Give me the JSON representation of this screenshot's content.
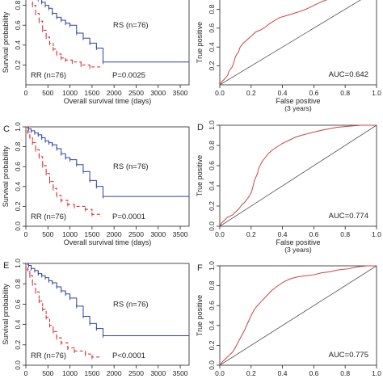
{
  "chart_data": [
    {
      "id": "km-top",
      "type": "line",
      "panel_letter": "",
      "xlabel": "Overall survival time (days)",
      "ylabel": "Survival probability",
      "xlim": [
        0,
        3700
      ],
      "ylim": [
        0,
        1
      ],
      "x_ticks": [
        0,
        500,
        1000,
        1500,
        2000,
        2500,
        3000,
        3500
      ],
      "y_ticks": [
        0.2,
        0.4,
        0.6,
        0.8
      ],
      "series": [
        {
          "name": "RS (n=76)",
          "color": "#3040a0",
          "dash": "",
          "points": [
            [
              0,
              1.0
            ],
            [
              60,
              0.97
            ],
            [
              120,
              0.93
            ],
            [
              200,
              0.89
            ],
            [
              280,
              0.86
            ],
            [
              360,
              0.83
            ],
            [
              440,
              0.8
            ],
            [
              520,
              0.77
            ],
            [
              600,
              0.72
            ],
            [
              700,
              0.68
            ],
            [
              800,
              0.65
            ],
            [
              900,
              0.62
            ],
            [
              1000,
              0.6
            ],
            [
              1150,
              0.52
            ],
            [
              1300,
              0.47
            ],
            [
              1450,
              0.42
            ],
            [
              1600,
              0.37
            ],
            [
              1750,
              0.23
            ],
            [
              3700,
              0.23
            ]
          ]
        },
        {
          "name": "RR (n=76)",
          "color": "#d02028",
          "dash": "4,3",
          "points": [
            [
              0,
              1.0
            ],
            [
              40,
              0.94
            ],
            [
              90,
              0.88
            ],
            [
              150,
              0.8
            ],
            [
              220,
              0.72
            ],
            [
              300,
              0.64
            ],
            [
              380,
              0.55
            ],
            [
              460,
              0.48
            ],
            [
              540,
              0.42
            ],
            [
              620,
              0.36
            ],
            [
              700,
              0.31
            ],
            [
              800,
              0.27
            ],
            [
              900,
              0.25
            ],
            [
              1050,
              0.23
            ],
            [
              1250,
              0.2
            ],
            [
              1450,
              0.18
            ],
            [
              1700,
              0.17
            ]
          ]
        }
      ],
      "labels": {
        "rs": "RS (n=76)",
        "rr": "RR (n=76)",
        "p": "P=0.0025"
      }
    },
    {
      "id": "roc-top",
      "type": "line",
      "panel_letter": "",
      "xlabel": "False positive",
      "xsublabel": "(3 years)",
      "ylabel": "True positive",
      "xlim": [
        0,
        1
      ],
      "ylim": [
        0,
        1
      ],
      "x_ticks": [
        0,
        0.2,
        0.4,
        0.6,
        0.8,
        1.0
      ],
      "y_ticks": [
        0.2,
        0.4,
        0.6,
        0.8
      ],
      "auc": "AUC=0.642",
      "series": [
        {
          "name": "ROC",
          "color": "#d04048",
          "points": [
            [
              0,
              0
            ],
            [
              0.01,
              0.03
            ],
            [
              0.03,
              0.06
            ],
            [
              0.05,
              0.1
            ],
            [
              0.06,
              0.15
            ],
            [
              0.08,
              0.19
            ],
            [
              0.09,
              0.24
            ],
            [
              0.1,
              0.3
            ],
            [
              0.12,
              0.35
            ],
            [
              0.13,
              0.4
            ],
            [
              0.15,
              0.44
            ],
            [
              0.17,
              0.47
            ],
            [
              0.19,
              0.5
            ],
            [
              0.21,
              0.53
            ],
            [
              0.23,
              0.56
            ],
            [
              0.26,
              0.58
            ],
            [
              0.29,
              0.61
            ],
            [
              0.32,
              0.65
            ],
            [
              0.35,
              0.68
            ],
            [
              0.38,
              0.71
            ],
            [
              0.42,
              0.73
            ],
            [
              0.46,
              0.75
            ],
            [
              0.5,
              0.77
            ],
            [
              0.55,
              0.8
            ],
            [
              0.6,
              0.84
            ],
            [
              0.65,
              0.88
            ],
            [
              0.7,
              0.91
            ],
            [
              0.75,
              0.94
            ],
            [
              0.8,
              0.97
            ],
            [
              0.85,
              0.99
            ],
            [
              0.9,
              1.0
            ],
            [
              1.0,
              1.0
            ]
          ]
        }
      ]
    },
    {
      "id": "km-mid",
      "type": "line",
      "panel_letter": "C",
      "xlabel": "Overall survival time (days)",
      "ylabel": "Survival probability",
      "xlim": [
        0,
        3700
      ],
      "ylim": [
        0,
        1
      ],
      "x_ticks": [
        0,
        500,
        1000,
        1500,
        2000,
        2500,
        3000,
        3500
      ],
      "y_ticks": [
        0.0,
        0.2,
        0.4,
        0.6,
        0.8,
        1.0
      ],
      "series": [
        {
          "name": "RS (n=76)",
          "color": "#3040a0",
          "dash": "",
          "points": [
            [
              0,
              1.0
            ],
            [
              60,
              0.98
            ],
            [
              120,
              0.96
            ],
            [
              200,
              0.94
            ],
            [
              280,
              0.92
            ],
            [
              360,
              0.89
            ],
            [
              440,
              0.86
            ],
            [
              520,
              0.84
            ],
            [
              600,
              0.82
            ],
            [
              700,
              0.78
            ],
            [
              800,
              0.73
            ],
            [
              900,
              0.69
            ],
            [
              1000,
              0.67
            ],
            [
              1150,
              0.62
            ],
            [
              1300,
              0.55
            ],
            [
              1450,
              0.46
            ],
            [
              1600,
              0.4
            ],
            [
              1750,
              0.3
            ],
            [
              3700,
              0.3
            ]
          ]
        },
        {
          "name": "RR (n=76)",
          "color": "#d02028",
          "dash": "4,3",
          "points": [
            [
              0,
              1.0
            ],
            [
              40,
              0.95
            ],
            [
              90,
              0.9
            ],
            [
              150,
              0.84
            ],
            [
              220,
              0.77
            ],
            [
              300,
              0.7
            ],
            [
              380,
              0.61
            ],
            [
              460,
              0.53
            ],
            [
              540,
              0.45
            ],
            [
              620,
              0.38
            ],
            [
              700,
              0.31
            ],
            [
              800,
              0.26
            ],
            [
              950,
              0.22
            ],
            [
              1100,
              0.2
            ],
            [
              1350,
              0.17
            ],
            [
              1500,
              0.12
            ],
            [
              1700,
              0.1
            ]
          ]
        }
      ],
      "labels": {
        "rs": "RS (n=76)",
        "rr": "RR (n=76)",
        "p": "P=0.0001"
      }
    },
    {
      "id": "roc-mid",
      "type": "line",
      "panel_letter": "D",
      "xlabel": "False positive",
      "xsublabel": "(3 years)",
      "ylabel": "True positive",
      "xlim": [
        0,
        1
      ],
      "ylim": [
        0,
        1
      ],
      "x_ticks": [
        0,
        0.2,
        0.4,
        0.6,
        0.8,
        1.0
      ],
      "y_ticks": [
        0.0,
        0.2,
        0.4,
        0.6,
        0.8,
        1.0
      ],
      "auc": "AUC=0.774",
      "series": [
        {
          "name": "ROC",
          "color": "#d04048",
          "points": [
            [
              0,
              0
            ],
            [
              0.01,
              0.03
            ],
            [
              0.03,
              0.06
            ],
            [
              0.05,
              0.09
            ],
            [
              0.08,
              0.11
            ],
            [
              0.1,
              0.14
            ],
            [
              0.12,
              0.17
            ],
            [
              0.14,
              0.21
            ],
            [
              0.16,
              0.24
            ],
            [
              0.18,
              0.28
            ],
            [
              0.2,
              0.33
            ],
            [
              0.21,
              0.38
            ],
            [
              0.22,
              0.45
            ],
            [
              0.24,
              0.52
            ],
            [
              0.25,
              0.58
            ],
            [
              0.27,
              0.64
            ],
            [
              0.29,
              0.68
            ],
            [
              0.31,
              0.72
            ],
            [
              0.34,
              0.76
            ],
            [
              0.37,
              0.79
            ],
            [
              0.4,
              0.82
            ],
            [
              0.44,
              0.85
            ],
            [
              0.48,
              0.88
            ],
            [
              0.52,
              0.9
            ],
            [
              0.57,
              0.92
            ],
            [
              0.62,
              0.94
            ],
            [
              0.68,
              0.96
            ],
            [
              0.75,
              0.98
            ],
            [
              0.82,
              0.99
            ],
            [
              0.9,
              1.0
            ],
            [
              1.0,
              1.0
            ]
          ]
        }
      ]
    },
    {
      "id": "km-bot",
      "type": "line",
      "panel_letter": "E",
      "xlabel": "",
      "ylabel": "Survival probability",
      "xlim": [
        0,
        3700
      ],
      "ylim": [
        0,
        1
      ],
      "x_ticks": [
        0,
        500,
        1000,
        1500,
        2000,
        2500,
        3000,
        3500
      ],
      "y_ticks": [
        0.0,
        0.2,
        0.4,
        0.6,
        0.8,
        1.0
      ],
      "series": [
        {
          "name": "RS (n=76)",
          "color": "#3040a0",
          "dash": "",
          "points": [
            [
              0,
              1.0
            ],
            [
              60,
              0.98
            ],
            [
              120,
              0.95
            ],
            [
              200,
              0.93
            ],
            [
              280,
              0.9
            ],
            [
              360,
              0.88
            ],
            [
              440,
              0.86
            ],
            [
              520,
              0.83
            ],
            [
              600,
              0.81
            ],
            [
              700,
              0.77
            ],
            [
              800,
              0.73
            ],
            [
              900,
              0.7
            ],
            [
              1000,
              0.66
            ],
            [
              1150,
              0.58
            ],
            [
              1300,
              0.48
            ],
            [
              1450,
              0.41
            ],
            [
              1600,
              0.36
            ],
            [
              1750,
              0.29
            ],
            [
              3700,
              0.29
            ]
          ]
        },
        {
          "name": "RR (n=76)",
          "color": "#d02028",
          "dash": "4,3",
          "points": [
            [
              0,
              1.0
            ],
            [
              40,
              0.94
            ],
            [
              90,
              0.88
            ],
            [
              150,
              0.8
            ],
            [
              220,
              0.72
            ],
            [
              300,
              0.63
            ],
            [
              380,
              0.55
            ],
            [
              460,
              0.47
            ],
            [
              540,
              0.39
            ],
            [
              620,
              0.33
            ],
            [
              700,
              0.27
            ],
            [
              800,
              0.22
            ],
            [
              950,
              0.17
            ],
            [
              1100,
              0.14
            ],
            [
              1350,
              0.11
            ],
            [
              1500,
              0.08
            ],
            [
              1700,
              0.07
            ]
          ]
        }
      ],
      "labels": {
        "rs": "RS (n=76)",
        "rr": "RR (n=76)",
        "p": "P<0.0001"
      }
    },
    {
      "id": "roc-bot",
      "type": "line",
      "panel_letter": "F",
      "xlabel": "",
      "xsublabel": "",
      "ylabel": "True positive",
      "xlim": [
        0,
        1
      ],
      "ylim": [
        0,
        1
      ],
      "x_ticks": [
        0,
        0.2,
        0.4,
        0.6,
        0.8,
        1.0
      ],
      "y_ticks": [
        0.0,
        0.2,
        0.4,
        0.6,
        0.8,
        1.0
      ],
      "auc": "AUC=0.775",
      "series": [
        {
          "name": "ROC",
          "color": "#d04048",
          "points": [
            [
              0,
              0
            ],
            [
              0.02,
              0.04
            ],
            [
              0.04,
              0.07
            ],
            [
              0.06,
              0.1
            ],
            [
              0.08,
              0.13
            ],
            [
              0.1,
              0.18
            ],
            [
              0.12,
              0.24
            ],
            [
              0.14,
              0.3
            ],
            [
              0.16,
              0.36
            ],
            [
              0.18,
              0.43
            ],
            [
              0.2,
              0.5
            ],
            [
              0.22,
              0.56
            ],
            [
              0.24,
              0.6
            ],
            [
              0.27,
              0.65
            ],
            [
              0.3,
              0.7
            ],
            [
              0.33,
              0.75
            ],
            [
              0.37,
              0.8
            ],
            [
              0.41,
              0.84
            ],
            [
              0.45,
              0.87
            ],
            [
              0.5,
              0.89
            ],
            [
              0.55,
              0.9
            ],
            [
              0.6,
              0.91
            ],
            [
              0.65,
              0.93
            ],
            [
              0.7,
              0.94
            ],
            [
              0.76,
              0.96
            ],
            [
              0.82,
              0.97
            ],
            [
              0.88,
              0.99
            ],
            [
              0.94,
              1.0
            ],
            [
              1.0,
              1.0
            ]
          ]
        }
      ]
    }
  ]
}
